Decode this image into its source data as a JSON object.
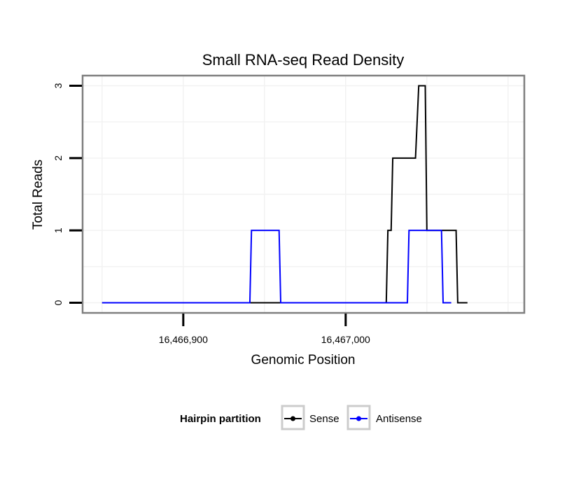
{
  "chart_data": {
    "type": "line",
    "title": "Small RNA-seq Read Density",
    "xlabel": "Genomic Position",
    "ylabel": "Total Reads",
    "xlim": [
      16466838,
      16467110
    ],
    "ylim": [
      -0.14,
      3.14
    ],
    "x_ticks": [
      16466900,
      16467000
    ],
    "x_tick_labels": [
      "16,466,900",
      "16,467,000"
    ],
    "y_ticks": [
      0,
      1,
      2,
      3
    ],
    "y_tick_labels": [
      "0",
      "1",
      "2",
      "3"
    ],
    "grid": true,
    "legend": {
      "title": "Hairpin partition",
      "position": "bottom"
    },
    "series": [
      {
        "name": "Sense",
        "color": "#000000",
        "x": [
          16466850,
          16467025,
          16467026,
          16467028,
          16467029,
          16467043,
          16467045,
          16467049,
          16467050,
          16467068,
          16467069,
          16467075
        ],
        "y": [
          0,
          0,
          1,
          1,
          2,
          2,
          3,
          3,
          1,
          1,
          0,
          0
        ]
      },
      {
        "name": "Antisense",
        "color": "#0000ff",
        "x": [
          16466850,
          16466941,
          16466942,
          16466959,
          16466960,
          16467038,
          16467039,
          16467059,
          16467060,
          16467065
        ],
        "y": [
          0,
          0,
          1,
          1,
          0,
          0,
          1,
          1,
          0,
          0
        ]
      }
    ]
  }
}
